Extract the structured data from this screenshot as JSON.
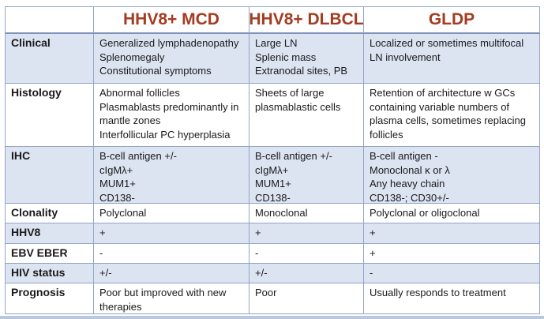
{
  "colors": {
    "border": "#93a5c6",
    "border_heavy": "#7e92ba",
    "band": "#dce3f1",
    "header_text": "#a33c21",
    "bottom_strip": "#bac8df",
    "body_text": "#1a1a1a"
  },
  "table": {
    "columns": [
      {
        "key": "label",
        "header": ""
      },
      {
        "key": "mcd",
        "header": "HHV8+ MCD"
      },
      {
        "key": "dlbcl",
        "header": "HHV8+ DLBCL"
      },
      {
        "key": "gldp",
        "header": "GLDP"
      }
    ],
    "rows": [
      {
        "key": "clinical",
        "label": "Clinical",
        "banded": true,
        "cells": [
          "Generalized lymphadenopathy\nSplenomegaly\nConstitutional symptoms",
          "Large LN\nSplenic mass\nExtranodal sites, PB",
          "Localized or sometimes multifocal LN involvement"
        ]
      },
      {
        "key": "histology",
        "label": "Histology",
        "banded": false,
        "cells": [
          "Abnormal follicles\nPlasmablasts predominantly in mantle zones\nInterfollicular PC hyperplasia",
          "Sheets of large plasmablastic cells",
          "Retention of architecture w GCs containing variable numbers of plasma cells, sometimes replacing follicles"
        ]
      },
      {
        "key": "ihc",
        "label": "IHC",
        "banded": true,
        "cells": [
          "B-cell antigen +/-\ncIgMλ+\nMUM1+\nCD138-",
          "B-cell antigen +/-\ncIgMλ+\nMUM1+\nCD138-",
          "B-cell antigen -\nMonoclonal κ or λ\nAny heavy chain\nCD138-; CD30+/-"
        ]
      },
      {
        "key": "clonality",
        "label": "Clonality",
        "banded": false,
        "cells": [
          "Polyclonal",
          "Monoclonal",
          "Polyclonal or oligoclonal"
        ]
      },
      {
        "key": "hhv8",
        "label": "HHV8",
        "banded": true,
        "cells": [
          "+",
          "+",
          "+"
        ]
      },
      {
        "key": "ebv-eber",
        "label": "EBV EBER",
        "banded": false,
        "cells": [
          "-",
          "-",
          "+"
        ]
      },
      {
        "key": "hiv-status",
        "label": "HIV status",
        "banded": true,
        "cells": [
          "+/-",
          "+/-",
          "-"
        ]
      },
      {
        "key": "prognosis",
        "label": "Prognosis",
        "banded": false,
        "cells": [
          "Poor but improved with new therapies",
          "Poor",
          "Usually responds to treatment"
        ]
      }
    ]
  }
}
